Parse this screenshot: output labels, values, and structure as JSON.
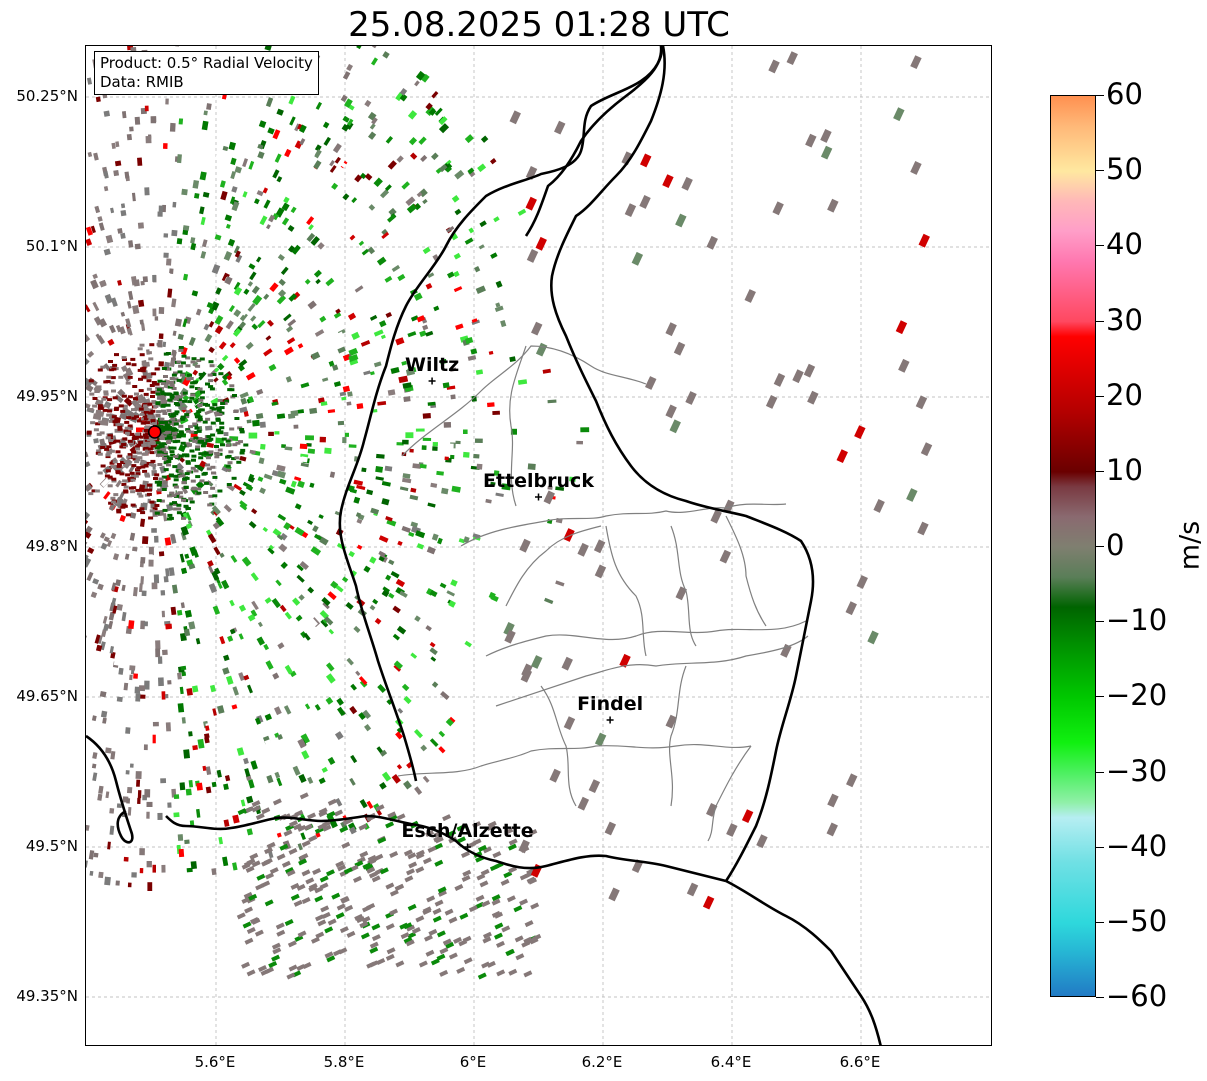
{
  "title": "25.08.2025 01:28 UTC",
  "info_box": {
    "product": "Product: 0.5° Radial Velocity",
    "data_source": "Data: RMIB"
  },
  "lat_labels": [
    "50.25°N",
    "50.1°N",
    "49.95°N",
    "49.8°N",
    "49.65°N",
    "49.5°N",
    "49.35°N"
  ],
  "lon_labels": [
    "5.6°E",
    "5.8°E",
    "6°E",
    "6.2°E",
    "6.4°E",
    "6.6°E"
  ],
  "map": {
    "lat_values": [
      50.25,
      50.1,
      49.95,
      49.8,
      49.65,
      49.5,
      49.35
    ],
    "lon_values": [
      5.6,
      5.8,
      6.0,
      6.2,
      6.4,
      6.6
    ],
    "radar_site": {
      "lat": 49.915,
      "lon": 5.505
    },
    "cities": [
      {
        "name": "Wiltz",
        "lat": 49.966,
        "lon": 5.935
      },
      {
        "name": "Ettelbruck",
        "lat": 49.85,
        "lon": 6.1
      },
      {
        "name": "Findel",
        "lat": 49.627,
        "lon": 6.211
      },
      {
        "name": "Esch/Alzette",
        "lat": 49.5,
        "lon": 5.99
      }
    ],
    "colors": {
      "border": "#000000",
      "district_lines": "#808080",
      "grid": "#b0b0b0",
      "radar_site": "#ff0000"
    }
  },
  "colorbar": {
    "unit": "m/s",
    "min": -60,
    "max": 60,
    "tick_labels": [
      "60",
      "50",
      "40",
      "30",
      "20",
      "10",
      "0",
      "−10",
      "−20",
      "−30",
      "−40",
      "−50",
      "−60"
    ],
    "tick_values": [
      60,
      50,
      40,
      30,
      20,
      10,
      0,
      -10,
      -20,
      -30,
      -40,
      -50,
      -60
    ],
    "color_stops": [
      {
        "v": -60,
        "c": "#2178c4"
      },
      {
        "v": -54,
        "c": "#26b5d4"
      },
      {
        "v": -50,
        "c": "#2ed8dc"
      },
      {
        "v": -42,
        "c": "#6fe0e4"
      },
      {
        "v": -36,
        "c": "#b6eef2"
      },
      {
        "v": -34,
        "c": "#90f0a8"
      },
      {
        "v": -30,
        "c": "#4cf060"
      },
      {
        "v": -26,
        "c": "#10f010"
      },
      {
        "v": -20,
        "c": "#00c800"
      },
      {
        "v": -13,
        "c": "#009000"
      },
      {
        "v": -8,
        "c": "#006400"
      },
      {
        "v": -4,
        "c": "#5a7e58"
      },
      {
        "v": 0,
        "c": "#7f7f70"
      },
      {
        "v": 4,
        "c": "#8a6a70"
      },
      {
        "v": 8,
        "c": "#7a3a42"
      },
      {
        "v": 10,
        "c": "#6a0000"
      },
      {
        "v": 18,
        "c": "#b40000"
      },
      {
        "v": 28,
        "c": "#ff0000"
      },
      {
        "v": 30,
        "c": "#ff4860"
      },
      {
        "v": 38,
        "c": "#ff78b0"
      },
      {
        "v": 42,
        "c": "#ff9ec8"
      },
      {
        "v": 46,
        "c": "#ffb8b8"
      },
      {
        "v": 50,
        "c": "#ffe8a0"
      },
      {
        "v": 56,
        "c": "#ffb878"
      },
      {
        "v": 60,
        "c": "#ff9050"
      }
    ]
  }
}
